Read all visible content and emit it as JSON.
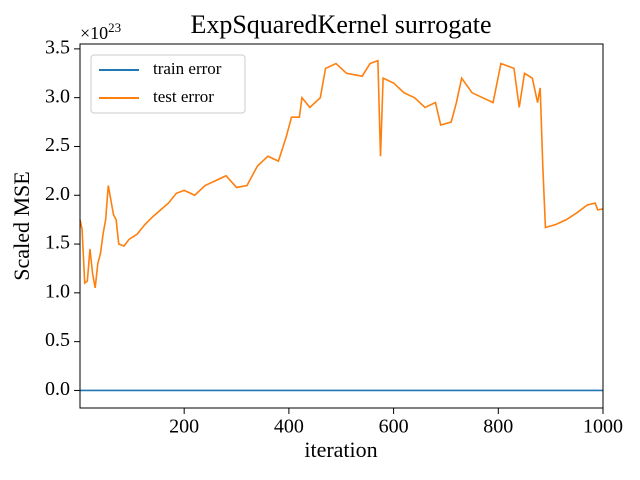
{
  "chart_data": {
    "type": "line",
    "title": "ExpSquaredKernel surrogate",
    "xlabel": "iteration",
    "ylabel": "Scaled MSE",
    "offset_text": "×10",
    "offset_exponent": "23",
    "xlim": [
      1,
      1000
    ],
    "ylim": [
      -0.18,
      3.55
    ],
    "xticks": [
      200,
      400,
      600,
      800,
      1000
    ],
    "yticks": [
      {
        "value": 0,
        "label": "0.0"
      },
      0.5,
      {
        "value": 1,
        "label": "1.0"
      },
      1.5,
      {
        "value": 2,
        "label": "2.0"
      },
      2.5,
      {
        "value": 3,
        "label": "3.0"
      },
      3.5
    ],
    "legend": "upper left",
    "series": [
      {
        "name": "train error",
        "color": "#1f77b4",
        "x": [
          1,
          1000
        ],
        "values": [
          0,
          0
        ]
      },
      {
        "name": "test error",
        "color": "#ff7f0e",
        "x": [
          1,
          5,
          10,
          15,
          20,
          25,
          30,
          35,
          40,
          45,
          50,
          55,
          60,
          65,
          70,
          75,
          85,
          95,
          110,
          125,
          140,
          155,
          170,
          185,
          200,
          220,
          240,
          260,
          280,
          300,
          320,
          340,
          360,
          380,
          395,
          405,
          420,
          425,
          440,
          460,
          470,
          490,
          510,
          540,
          555,
          570,
          575,
          580,
          600,
          620,
          640,
          660,
          680,
          690,
          710,
          720,
          730,
          750,
          770,
          790,
          805,
          830,
          840,
          850,
          865,
          875,
          880,
          885,
          890,
          910,
          930,
          950,
          970,
          985,
          990,
          1000
        ],
        "values": [
          1.75,
          1.65,
          1.1,
          1.12,
          1.45,
          1.2,
          1.05,
          1.3,
          1.4,
          1.6,
          1.75,
          2.1,
          1.95,
          1.8,
          1.75,
          1.5,
          1.48,
          1.55,
          1.6,
          1.7,
          1.78,
          1.85,
          1.92,
          2.02,
          2.05,
          2.0,
          2.1,
          2.15,
          2.2,
          2.08,
          2.1,
          2.3,
          2.4,
          2.35,
          2.6,
          2.8,
          2.8,
          3.0,
          2.9,
          3.0,
          3.3,
          3.35,
          3.25,
          3.22,
          3.35,
          3.38,
          2.4,
          3.2,
          3.15,
          3.05,
          3.0,
          2.9,
          2.95,
          2.72,
          2.75,
          2.95,
          3.2,
          3.05,
          3.0,
          2.95,
          3.35,
          3.3,
          2.9,
          3.25,
          3.2,
          2.95,
          3.1,
          2.3,
          1.67,
          1.7,
          1.75,
          1.82,
          1.9,
          1.92,
          1.85,
          1.86
        ]
      }
    ]
  }
}
